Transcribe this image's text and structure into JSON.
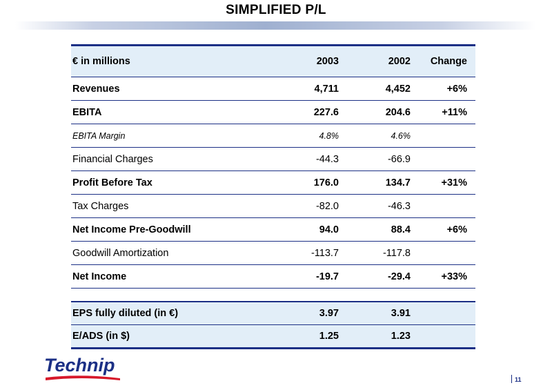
{
  "title": "SIMPLIFIED P/L",
  "table": {
    "header": {
      "label": "€ in millions",
      "y2003": "2003",
      "y2002": "2002",
      "change": "Change"
    },
    "rows": [
      {
        "label": "Revenues",
        "y2003": "4,711",
        "y2002": "4,452",
        "change": "+6%"
      },
      {
        "label": "EBITA",
        "y2003": "227.6",
        "y2002": "204.6",
        "change": "+11%"
      },
      {
        "label": "EBITA Margin",
        "y2003": "4.8%",
        "y2002": "4.6%",
        "change": ""
      },
      {
        "label": "Financial Charges",
        "y2003": "-44.3",
        "y2002": "-66.9",
        "change": ""
      },
      {
        "label": "Profit Before Tax",
        "y2003": "176.0",
        "y2002": "134.7",
        "change": "+31%"
      },
      {
        "label": "Tax Charges",
        "y2003": "-82.0",
        "y2002": "-46.3",
        "change": ""
      },
      {
        "label": "Net Income Pre-Goodwill",
        "y2003": "94.0",
        "y2002": "88.4",
        "change": "+6%"
      },
      {
        "label": "Goodwill Amortization",
        "y2003": "-113.7",
        "y2002": "-117.8",
        "change": ""
      },
      {
        "label": "Net Income",
        "y2003": "-19.7",
        "y2002": "-29.4",
        "change": "+33%"
      }
    ],
    "eps_rows": [
      {
        "label": "EPS fully diluted (in €)",
        "y2003": "3.97",
        "y2002": "3.91",
        "change": ""
      },
      {
        "label": "E/ADS (in $)",
        "y2003": "1.25",
        "y2002": "1.23",
        "change": ""
      }
    ]
  },
  "footer": {
    "logo_text": "Technip",
    "page_number": "11"
  },
  "colors": {
    "rule": "#1b2f85",
    "header_fill": "#e2eef8",
    "logo_blue": "#1b2f85",
    "logo_red": "#d7182a"
  }
}
